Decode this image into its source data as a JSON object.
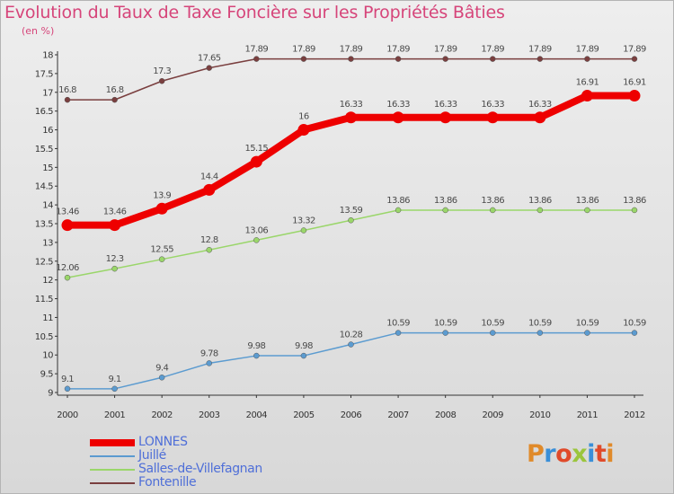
{
  "title": "Evolution du Taux de Taxe Foncière sur les Propriétés Bâties",
  "subtitle": "(en %)",
  "logo": {
    "text": "Proxiti",
    "colors": [
      "#e08a2a",
      "#3a8fd8",
      "#e04a2a",
      "#9bc53d",
      "#3a8fd8",
      "#e04a2a",
      "#e08a2a"
    ]
  },
  "chart_data": {
    "type": "line",
    "x": [
      "2000",
      "2001",
      "2002",
      "2003",
      "2004",
      "2005",
      "2006",
      "2007",
      "2008",
      "2009",
      "2010",
      "2011",
      "2012"
    ],
    "ylim": [
      9,
      18
    ],
    "yticks": [
      "9",
      "9.5",
      "10",
      "10.5",
      "11",
      "11.5",
      "12",
      "12.5",
      "13",
      "13.5",
      "14",
      "14.5",
      "15",
      "15.5",
      "16",
      "16.5",
      "17",
      "17.5",
      "18"
    ],
    "grid": false,
    "legend_position": "bottom-left",
    "series": [
      {
        "name": "LONNES",
        "color": "#ee0000",
        "highlight": true,
        "values": [
          13.46,
          13.46,
          13.9,
          14.4,
          15.15,
          16,
          16.33,
          16.33,
          16.33,
          16.33,
          16.33,
          16.91,
          16.91
        ],
        "labels": [
          "13.46",
          "13.46",
          "13.9",
          "14.4",
          "15.15",
          "16",
          "16.33",
          "16.33",
          "16.33",
          "16.33",
          "16.33",
          "16.91",
          "16.91"
        ]
      },
      {
        "name": "Juillé",
        "color": "#5b9bd0",
        "highlight": false,
        "values": [
          9.1,
          9.1,
          9.4,
          9.78,
          9.98,
          9.98,
          10.28,
          10.59,
          10.59,
          10.59,
          10.59,
          10.59,
          10.59
        ],
        "labels": [
          "9.1",
          "9.1",
          "9.4",
          "9.78",
          "9.98",
          "9.98",
          "10.28",
          "10.59",
          "10.59",
          "10.59",
          "10.59",
          "10.59",
          "10.59"
        ]
      },
      {
        "name": "Salles-de-Villefagnan",
        "color": "#9ad66a",
        "highlight": false,
        "values": [
          12.06,
          12.3,
          12.55,
          12.8,
          13.06,
          13.32,
          13.59,
          13.86,
          13.86,
          13.86,
          13.86,
          13.86,
          13.86
        ],
        "labels": [
          "12.06",
          "12.3",
          "12.55",
          "12.8",
          "13.06",
          "13.32",
          "13.59",
          "13.86",
          "13.86",
          "13.86",
          "13.86",
          "13.86",
          "13.86"
        ]
      },
      {
        "name": "Fontenille",
        "color": "#7a3f3f",
        "highlight": false,
        "values": [
          16.8,
          16.8,
          17.3,
          17.65,
          17.89,
          17.89,
          17.89,
          17.89,
          17.89,
          17.89,
          17.89,
          17.89,
          17.89
        ],
        "labels": [
          "16.8",
          "16.8",
          "17.3",
          "17.65",
          "17.89",
          "17.89",
          "17.89",
          "17.89",
          "17.89",
          "17.89",
          "17.89",
          "17.89",
          "17.89"
        ]
      }
    ]
  }
}
